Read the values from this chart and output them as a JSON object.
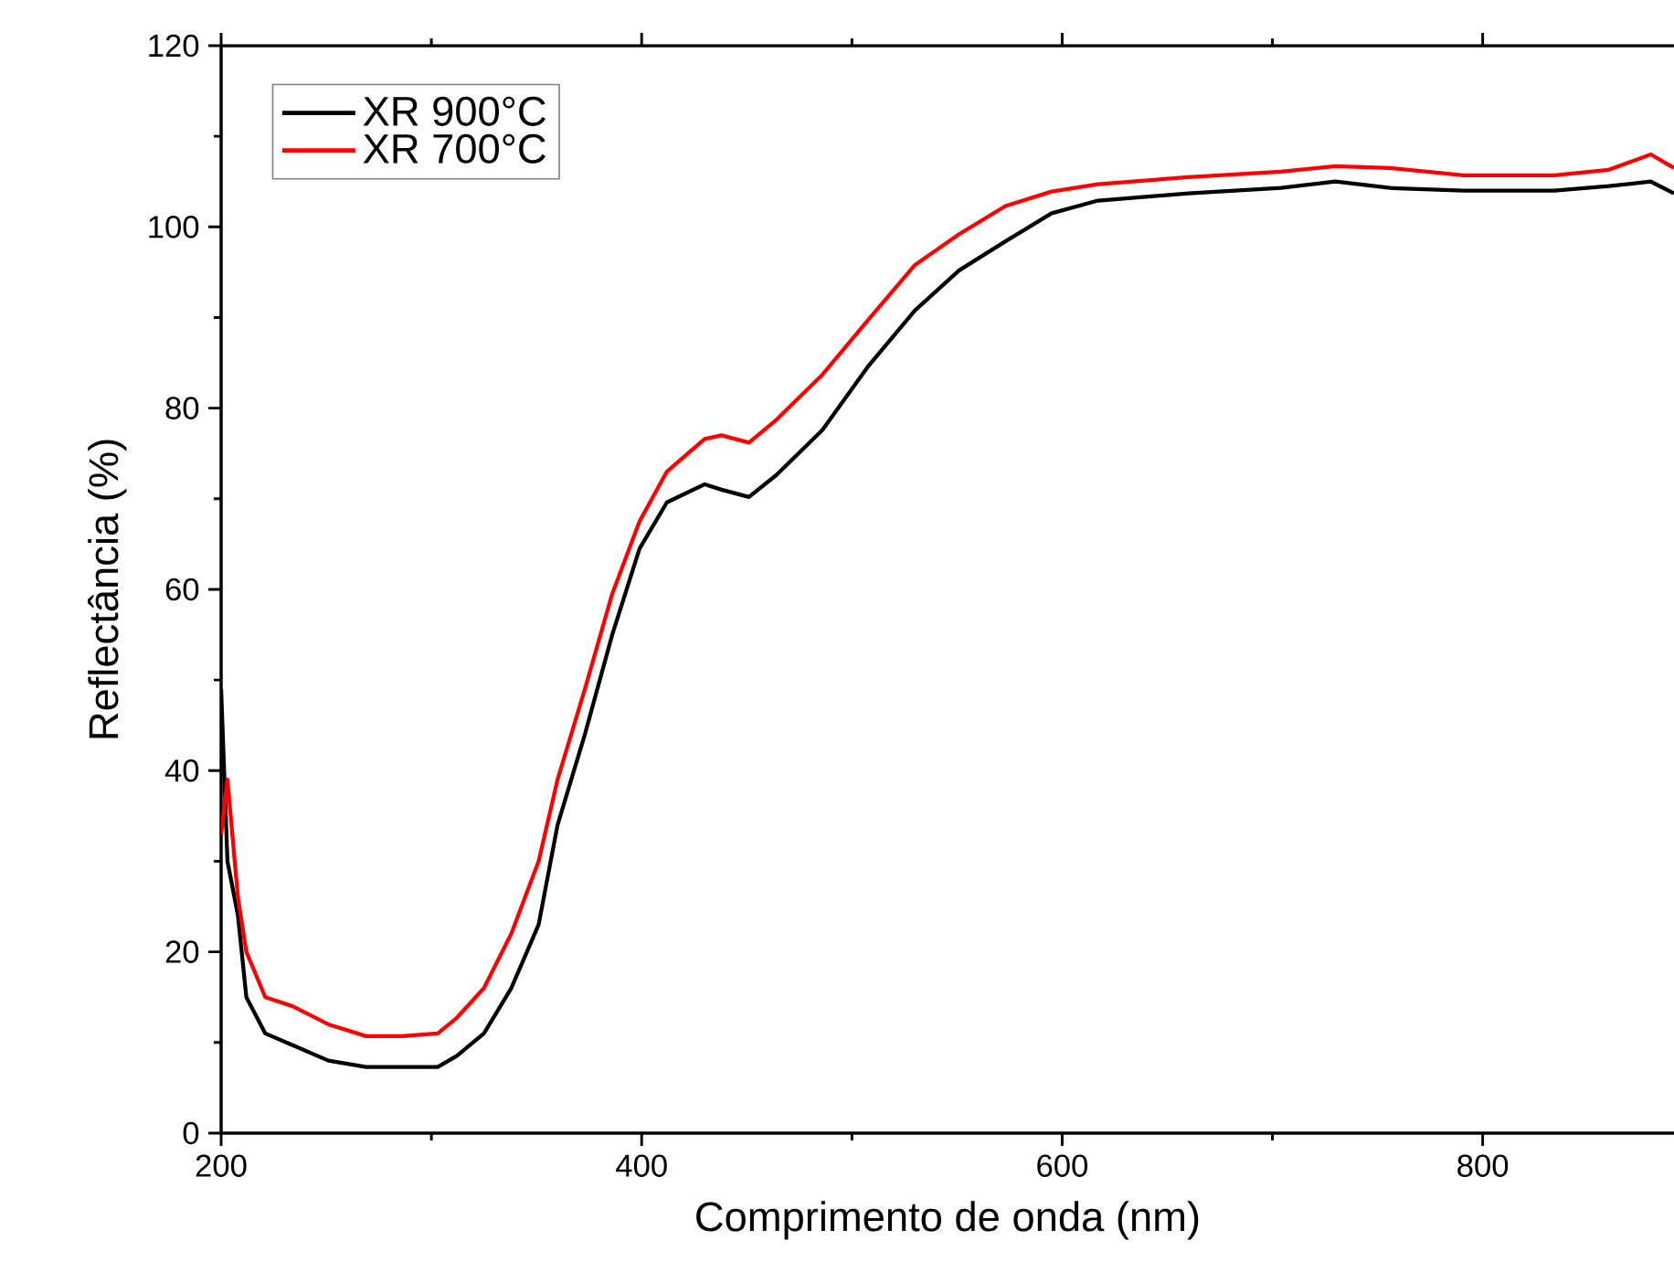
{
  "chart_data": {
    "type": "line",
    "xlabel": "Comprimento de onda (nm)",
    "ylabel": "Reflectância (%)",
    "xlim": [
      200,
      891
    ],
    "ylim": [
      0,
      120
    ],
    "xticks": [
      200,
      400,
      600,
      800
    ],
    "yticks": [
      0,
      20,
      40,
      60,
      80,
      100,
      120
    ],
    "legend": "top left",
    "series": [
      {
        "name": "XR 900°C",
        "color": "#000000",
        "x": [
          200,
          203,
          208,
          212,
          221,
          234,
          251,
          269,
          286,
          303,
          312,
          325,
          338,
          351,
          360,
          373,
          386,
          399,
          412,
          430,
          438,
          451,
          464,
          486,
          508,
          530,
          551,
          573,
          595,
          617,
          660,
          704,
          730,
          756,
          791,
          834,
          860,
          880,
          891
        ],
        "values": [
          49,
          30,
          24,
          15,
          11,
          9.7,
          8,
          7.3,
          7.3,
          7.3,
          8.5,
          11,
          16,
          23,
          34,
          44,
          55,
          64.5,
          69.6,
          71.6,
          71,
          70.2,
          72.6,
          77.6,
          84.7,
          90.8,
          95.2,
          98.4,
          101.5,
          102.9,
          103.7,
          104.3,
          105,
          104.3,
          104,
          104,
          104.5,
          105,
          103.7
        ]
      },
      {
        "name": "XR 700°C",
        "color": "#ff0000",
        "x": [
          200,
          203,
          208,
          212,
          221,
          234,
          251,
          269,
          286,
          303,
          312,
          325,
          338,
          351,
          360,
          373,
          386,
          399,
          412,
          430,
          438,
          451,
          464,
          486,
          508,
          530,
          551,
          573,
          595,
          617,
          660,
          704,
          730,
          756,
          791,
          834,
          860,
          880,
          891
        ],
        "values": [
          33,
          39,
          26,
          20,
          15,
          14,
          12,
          10.7,
          10.7,
          11,
          12.7,
          16,
          22,
          30,
          39,
          49,
          59.5,
          67.5,
          73,
          76.6,
          77,
          76.2,
          78.7,
          83.7,
          89.8,
          95.8,
          99.2,
          102.3,
          103.9,
          104.7,
          105.5,
          106.1,
          106.7,
          106.5,
          105.7,
          105.7,
          106.3,
          108,
          106.5
        ]
      }
    ]
  }
}
